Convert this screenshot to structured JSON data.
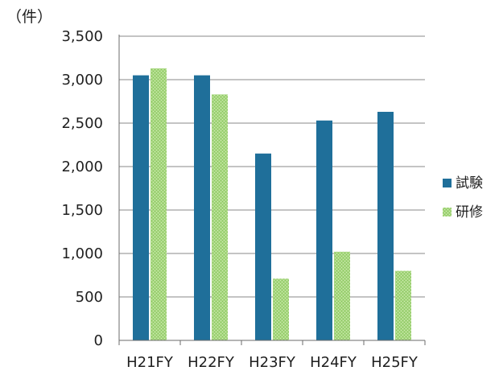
{
  "chart_data": {
    "type": "bar",
    "unit_label": "（件）",
    "categories": [
      "H21FY",
      "H22FY",
      "H23FY",
      "H24FY",
      "H25FY"
    ],
    "series": [
      {
        "name": "試験",
        "values": [
          3050,
          3050,
          2150,
          2530,
          2630
        ],
        "color": "#1f6f9a"
      },
      {
        "name": "研修",
        "values": [
          3130,
          2830,
          710,
          1020,
          800
        ],
        "color": "#a7d77f"
      }
    ],
    "y_ticks": [
      0,
      500,
      1000,
      1500,
      2000,
      2500,
      3000,
      3500
    ],
    "y_tick_labels": [
      "0",
      "500",
      "1,000",
      "1,500",
      "2,000",
      "2,500",
      "3,000",
      "3,500"
    ],
    "ylim": [
      0,
      3500
    ],
    "grid": true,
    "legend_position": "right"
  }
}
